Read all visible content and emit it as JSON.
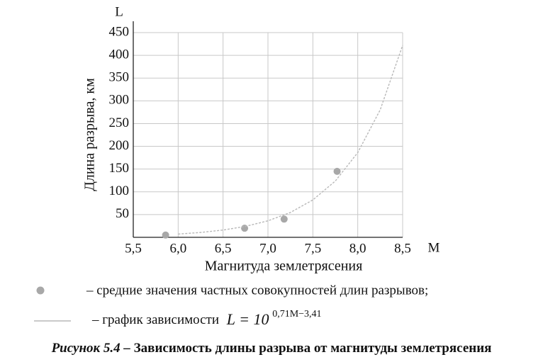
{
  "chart_data": {
    "type": "scatter",
    "y_axis_symbol": "L",
    "x_axis_symbol": "M",
    "y_label": "Длина разрыва, км",
    "x_label": "Магнитуда землетрясения",
    "xlim": [
      5.5,
      8.5
    ],
    "xticks": [
      {
        "value": 5.5,
        "label": "5,5"
      },
      {
        "value": 6.0,
        "label": "6,0"
      },
      {
        "value": 6.5,
        "label": "6,5"
      },
      {
        "value": 7.0,
        "label": "7,0"
      },
      {
        "value": 7.5,
        "label": "7,5"
      },
      {
        "value": 8.0,
        "label": "8,0"
      },
      {
        "value": 8.5,
        "label": "8,5"
      }
    ],
    "ylim": [
      0,
      450
    ],
    "yticks": [
      50,
      100,
      150,
      200,
      250,
      300,
      350,
      400,
      450
    ],
    "grid": true,
    "series": [
      {
        "name": "– средние значения частных совокупностей длин разрывов;",
        "type": "scatter",
        "color": "#a8a8a8",
        "x": [
          5.86,
          6.74,
          7.18,
          7.77
        ],
        "values": [
          5,
          20,
          40,
          145
        ]
      },
      {
        "name": "– график зависимости",
        "formula": "L = 10",
        "formula_exponent": "0,71M−3,41",
        "type": "line",
        "color": "#b8b8b8",
        "x": [
          6.0,
          6.25,
          6.5,
          6.75,
          7.0,
          7.25,
          7.5,
          7.75,
          8.0,
          8.25,
          8.5
        ],
        "values": [
          7.1,
          10.7,
          16.0,
          24.1,
          36.3,
          54.6,
          82.2,
          123.7,
          186.2,
          280.2,
          422
        ]
      }
    ],
    "caption_number": "Рисунок 5.4 –",
    "title": "Зависимость длины разрыва от магнитуды землетрясения"
  }
}
